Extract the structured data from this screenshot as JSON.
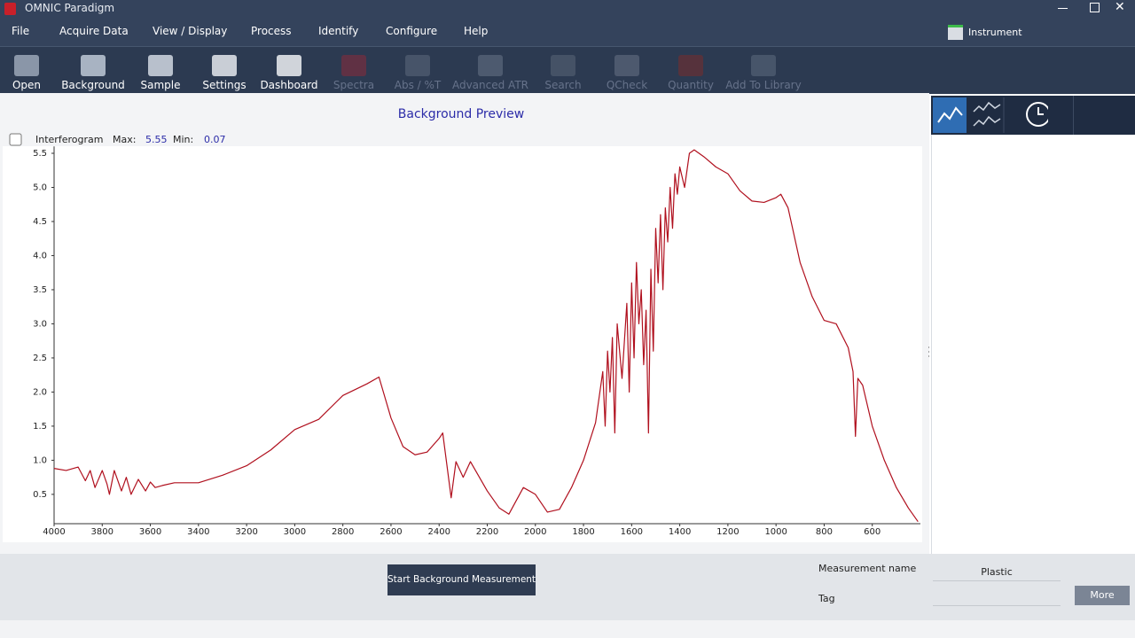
{
  "app_title": "OMNIC Paradigm",
  "menu": [
    "File",
    "Acquire Data",
    "View / Display",
    "Process",
    "Identify",
    "Configure",
    "Help"
  ],
  "instrument": "Instrument",
  "toolbar": [
    {
      "label": "Open",
      "enabled": true
    },
    {
      "label": "Background",
      "enabled": true
    },
    {
      "label": "Sample",
      "enabled": true
    },
    {
      "label": "Settings",
      "enabled": true
    },
    {
      "label": "Dashboard",
      "enabled": true
    },
    {
      "label": "Spectra",
      "enabled": false
    },
    {
      "label": "Abs / %T",
      "enabled": false
    },
    {
      "label": "Advanced ATR",
      "enabled": false
    },
    {
      "label": "Search",
      "enabled": false
    },
    {
      "label": "QCheck",
      "enabled": false
    },
    {
      "label": "Quantity",
      "enabled": false
    },
    {
      "label": "Add To Library",
      "enabled": false
    }
  ],
  "preview": {
    "checkbox_label": "Interferogram",
    "max_label": "Max:",
    "max": 5.55,
    "min_label": "Min:",
    "min": 0.07
  },
  "chart_data": {
    "type": "line",
    "title": "Background Preview",
    "color": "#b0101e",
    "xlim": [
      4000,
      400
    ],
    "ylim": [
      0.07,
      5.6
    ],
    "xticks": [
      4000,
      3800,
      3600,
      3400,
      3200,
      3000,
      2800,
      2600,
      2400,
      2200,
      2000,
      1800,
      1600,
      1400,
      1200,
      1000,
      800,
      600
    ],
    "yticks": [
      0.5,
      {
        "value": 1,
        "label": "1.0"
      },
      1.5,
      {
        "value": 2,
        "label": "2.0"
      },
      2.5,
      {
        "value": 3,
        "label": "3.0"
      },
      3.5,
      {
        "value": 4,
        "label": "4.0"
      },
      4.5,
      {
        "value": 5,
        "label": "5.0"
      },
      5.5
    ],
    "x": [
      4000,
      3950,
      3900,
      3870,
      3850,
      3830,
      3800,
      3780,
      3770,
      3750,
      3720,
      3700,
      3680,
      3650,
      3620,
      3600,
      3580,
      3550,
      3500,
      3400,
      3300,
      3200,
      3100,
      3000,
      2900,
      2800,
      2700,
      2650,
      2600,
      2550,
      2500,
      2450,
      2400,
      2385,
      2350,
      2330,
      2300,
      2270,
      2200,
      2150,
      2110,
      2050,
      2000,
      1950,
      1900,
      1850,
      1800,
      1750,
      1720,
      1710,
      1700,
      1690,
      1680,
      1670,
      1660,
      1640,
      1620,
      1610,
      1600,
      1590,
      1580,
      1570,
      1560,
      1550,
      1540,
      1530,
      1520,
      1510,
      1500,
      1490,
      1480,
      1470,
      1460,
      1450,
      1440,
      1430,
      1420,
      1410,
      1400,
      1380,
      1360,
      1340,
      1300,
      1250,
      1200,
      1150,
      1100,
      1050,
      1000,
      980,
      950,
      900,
      850,
      800,
      750,
      700,
      680,
      670,
      660,
      640,
      600,
      550,
      500,
      450,
      410
    ],
    "values": [
      0.88,
      0.85,
      0.9,
      0.7,
      0.85,
      0.6,
      0.85,
      0.65,
      0.5,
      0.85,
      0.55,
      0.75,
      0.5,
      0.72,
      0.55,
      0.68,
      0.6,
      0.63,
      0.67,
      0.67,
      0.78,
      0.92,
      1.15,
      1.45,
      1.6,
      1.95,
      2.12,
      2.22,
      1.62,
      1.2,
      1.08,
      1.12,
      1.32,
      1.4,
      0.45,
      0.98,
      0.75,
      0.98,
      0.55,
      0.3,
      0.21,
      0.6,
      0.5,
      0.24,
      0.28,
      0.6,
      1.0,
      1.55,
      2.3,
      1.5,
      2.6,
      2.0,
      2.8,
      1.4,
      3.0,
      2.2,
      3.3,
      2.0,
      3.6,
      2.5,
      3.9,
      3.0,
      3.5,
      2.4,
      3.2,
      1.4,
      3.8,
      2.6,
      4.4,
      3.6,
      4.6,
      3.5,
      4.7,
      4.2,
      5.0,
      4.4,
      5.2,
      4.9,
      5.3,
      5.0,
      5.5,
      5.55,
      5.45,
      5.3,
      5.2,
      4.95,
      4.8,
      4.78,
      4.85,
      4.9,
      4.7,
      3.9,
      3.4,
      3.05,
      3.0,
      2.65,
      2.3,
      1.35,
      2.2,
      2.1,
      1.5,
      1.0,
      0.6,
      0.3,
      0.1
    ]
  },
  "start_button": "Start Background Measurement",
  "measurement_name_label": "Measurement name",
  "measurement_name": "Plastic",
  "tag_label": "Tag",
  "more_button": "More"
}
